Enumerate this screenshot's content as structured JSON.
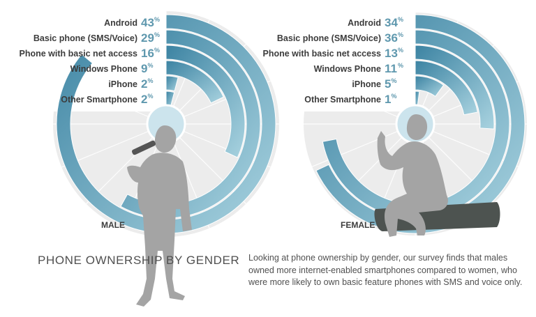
{
  "colors": {
    "disc": "#ececec",
    "bar_light": "#a9d3e0",
    "bar_dark": "#3c83a2",
    "center": "#cce4ed",
    "silhouette": "#a4a4a4",
    "case": "#4d5350",
    "label": "#3c3c3c",
    "pct": "#5f98ae"
  },
  "headline": "PHONE OWNERSHIP BY GENDER",
  "description": "Looking at phone ownership by gender, our survey finds that males owned more internet-enabled smartphones compared to women, who were more likely to own basic feature phones with SMS and voice only.",
  "icons": [
    "male-figure-singing-icon",
    "female-figure-sitting-icon",
    "guitar-case-icon"
  ],
  "chart_data": [
    {
      "type": "radial-bar",
      "group": "MALE",
      "unit": "%",
      "categories": [
        "Android",
        "Basic phone (SMS/Voice)",
        "Phone with basic net access",
        "Windows Phone",
        "iPhone",
        "Other Smartphone"
      ],
      "values": [
        43,
        29,
        16,
        9,
        2,
        2
      ]
    },
    {
      "type": "radial-bar",
      "group": "FEMALE",
      "unit": "%",
      "categories": [
        "Android",
        "Basic phone (SMS/Voice)",
        "Phone with basic net access",
        "Windows Phone",
        "iPhone",
        "Other Smartphone"
      ],
      "values": [
        34,
        36,
        13,
        11,
        5,
        1
      ]
    }
  ]
}
